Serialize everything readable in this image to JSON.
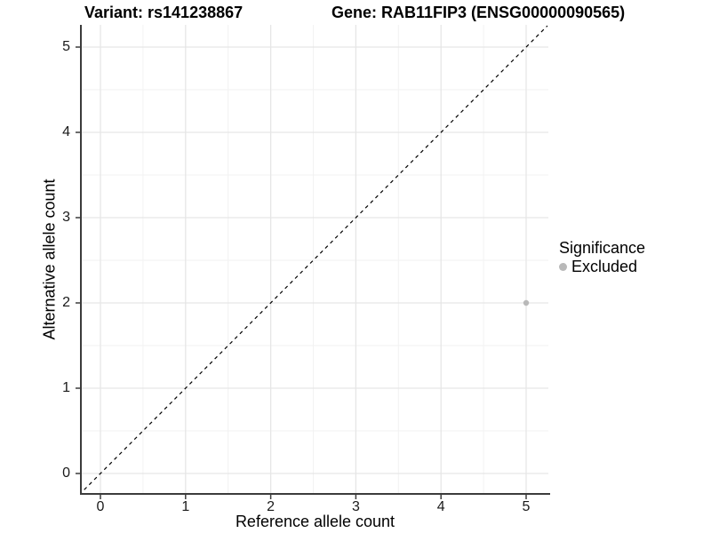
{
  "chart_data": {
    "type": "scatter",
    "title_left": "Variant: rs141238867",
    "title_right": "Gene: RAB11FIP3 (ENSG00000090565)",
    "xlabel": "Reference allele count",
    "ylabel": "Alternative allele count",
    "x_ticks": [
      0,
      1,
      2,
      3,
      4,
      5
    ],
    "y_ticks": [
      0,
      1,
      2,
      3,
      4,
      5
    ],
    "xlim": [
      -0.25,
      5.25
    ],
    "ylim": [
      -0.25,
      5.25
    ],
    "grid": "major and minor gridlines, minor at 0.5 steps",
    "identity_line": {
      "style": "dashed",
      "color": "#000000",
      "from": [
        -0.25,
        -0.25
      ],
      "to": [
        5.25,
        5.25
      ]
    },
    "series": [
      {
        "name": "Excluded",
        "color": "#b9b9b9",
        "points": [
          {
            "x": 5,
            "y": 2
          }
        ]
      }
    ],
    "legend": {
      "title": "Significance",
      "position": "right",
      "items": [
        {
          "label": "Excluded",
          "color": "#b9b9b9",
          "marker": "circle"
        }
      ]
    }
  },
  "colors": {
    "background": "#ffffff",
    "grid_major": "#e6e6e6",
    "grid_minor": "#f2f2f2",
    "axis_line": "#3c3c3c",
    "tick_mark": "#3c3c3c",
    "point": "#b9b9b9"
  }
}
